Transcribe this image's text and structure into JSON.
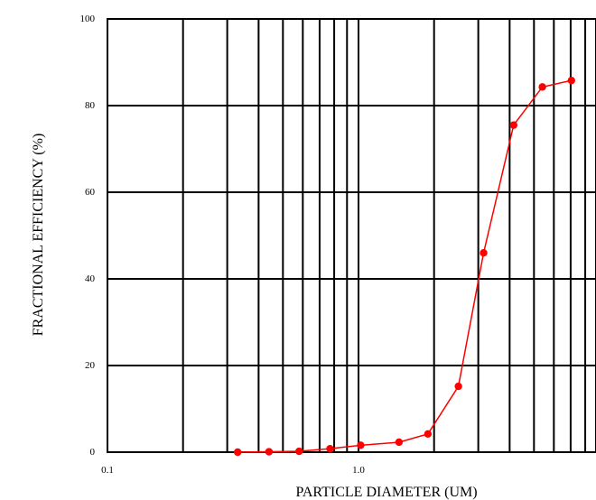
{
  "chart_data": {
    "type": "line",
    "title": "",
    "xlabel": "PARTICLE DIAMETER (UM)",
    "ylabel": "FRACTIONAL EFFICIENCY (%)",
    "x_scale": "log",
    "xlim": [
      0.1,
      10
    ],
    "ylim": [
      0,
      100
    ],
    "x_tick_labels": [
      {
        "value": 0.1,
        "label": "0.1"
      },
      {
        "value": 1.0,
        "label": "1.0"
      }
    ],
    "y_tick_labels": [
      {
        "value": 0,
        "label": "0"
      },
      {
        "value": 20,
        "label": "20"
      },
      {
        "value": 40,
        "label": "40"
      },
      {
        "value": 60,
        "label": "60"
      },
      {
        "value": 80,
        "label": "80"
      },
      {
        "value": 100,
        "label": "100"
      }
    ],
    "x_gridlines": [
      0.1,
      0.2,
      0.3,
      0.4,
      0.5,
      0.6,
      0.7,
      0.8,
      0.9,
      1,
      2,
      3,
      4,
      5,
      6,
      7,
      8,
      9,
      10
    ],
    "y_gridlines": [
      0,
      20,
      40,
      60,
      80,
      100
    ],
    "grid": true,
    "series": [
      {
        "color": "#ff0000",
        "marker": "circle",
        "x": [
          0.33,
          0.44,
          0.58,
          0.77,
          1.02,
          1.45,
          1.89,
          2.5,
          3.15,
          4.15,
          5.4,
          7.05
        ],
        "y": [
          0,
          0.1,
          0.2,
          0.8,
          1.6,
          2.3,
          4.2,
          15.2,
          46,
          75.5,
          84.3,
          85.8
        ]
      }
    ]
  }
}
